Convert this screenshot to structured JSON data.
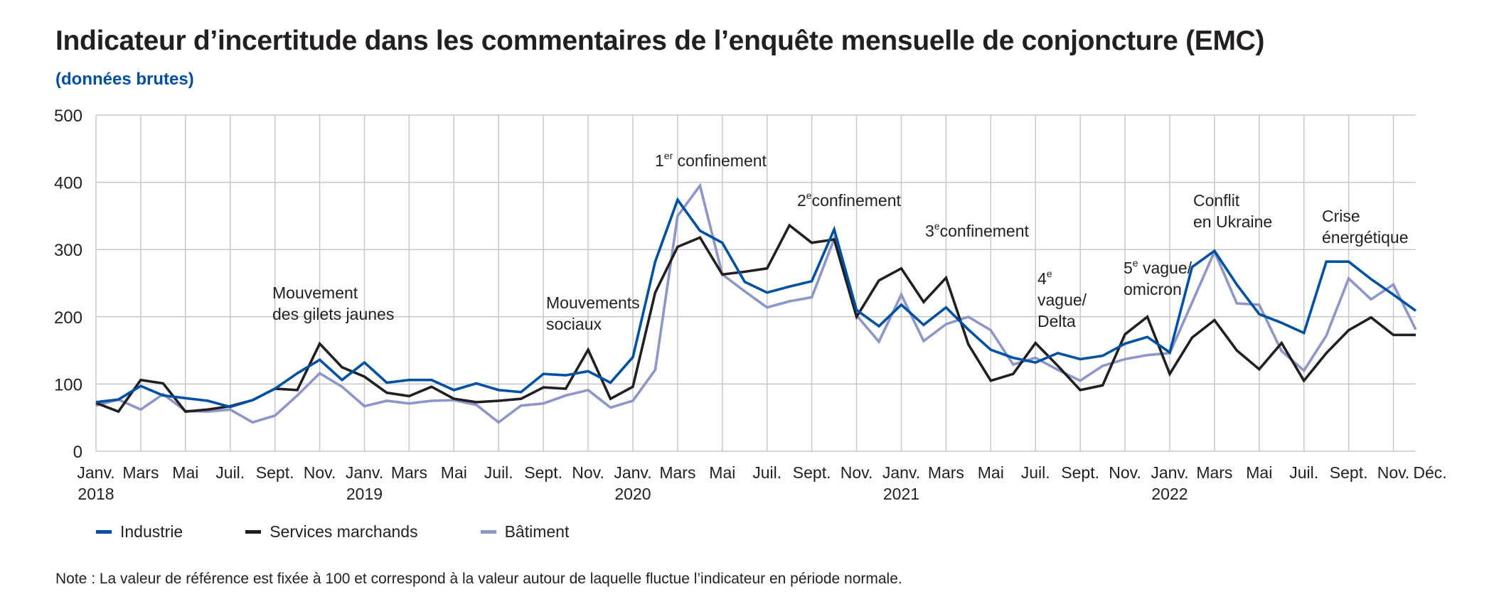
{
  "title": "Indicateur d’incertitude dans les commentaires de l’enquête mensuelle de conjoncture (EMC)",
  "subtitle": "(données brutes)",
  "note": "Note : La valeur de référence est fixée à 100 et correspond à la valeur autour de laquelle fluctue l’indicateur en période normale.",
  "chart_data": {
    "type": "line",
    "title": "Indicateur d’incertitude dans les commentaires de l’enquête mensuelle de conjoncture (EMC)",
    "subtitle": "(données brutes)",
    "xlabel": "",
    "ylabel": "",
    "ylim": [
      0,
      500
    ],
    "y_ticks": [
      0,
      100,
      200,
      300,
      400,
      500
    ],
    "grid": true,
    "legend_position": "bottom",
    "x": [
      "2018-01",
      "2018-02",
      "2018-03",
      "2018-04",
      "2018-05",
      "2018-06",
      "2018-07",
      "2018-08",
      "2018-09",
      "2018-10",
      "2018-11",
      "2018-12",
      "2019-01",
      "2019-02",
      "2019-03",
      "2019-04",
      "2019-05",
      "2019-06",
      "2019-07",
      "2019-08",
      "2019-09",
      "2019-10",
      "2019-11",
      "2019-12",
      "2020-01",
      "2020-02",
      "2020-03",
      "2020-04",
      "2020-05",
      "2020-06",
      "2020-07",
      "2020-08",
      "2020-09",
      "2020-10",
      "2020-11",
      "2020-12",
      "2021-01",
      "2021-02",
      "2021-03",
      "2021-04",
      "2021-05",
      "2021-06",
      "2021-07",
      "2021-08",
      "2021-09",
      "2021-10",
      "2021-11",
      "2021-12",
      "2022-01",
      "2022-02",
      "2022-03",
      "2022-04",
      "2022-05",
      "2022-06",
      "2022-07",
      "2022-08",
      "2022-09",
      "2022-10",
      "2022-11",
      "2022-12"
    ],
    "x_tick_labels": [
      {
        "x": "2018-01",
        "label": "Janv.",
        "year": "2018"
      },
      {
        "x": "2018-03",
        "label": "Mars"
      },
      {
        "x": "2018-05",
        "label": "Mai"
      },
      {
        "x": "2018-07",
        "label": "Juil."
      },
      {
        "x": "2018-09",
        "label": "Sept."
      },
      {
        "x": "2018-11",
        "label": "Nov."
      },
      {
        "x": "2019-01",
        "label": "Janv.",
        "year": "2019"
      },
      {
        "x": "2019-03",
        "label": "Mars"
      },
      {
        "x": "2019-05",
        "label": "Mai"
      },
      {
        "x": "2019-07",
        "label": "Juil."
      },
      {
        "x": "2019-09",
        "label": "Sept."
      },
      {
        "x": "2019-11",
        "label": "Nov."
      },
      {
        "x": "2020-01",
        "label": "Janv.",
        "year": "2020"
      },
      {
        "x": "2020-03",
        "label": "Mars"
      },
      {
        "x": "2020-05",
        "label": "Mai"
      },
      {
        "x": "2020-07",
        "label": "Juil."
      },
      {
        "x": "2020-09",
        "label": "Sept."
      },
      {
        "x": "2020-11",
        "label": "Nov."
      },
      {
        "x": "2021-01",
        "label": "Janv.",
        "year": "2021"
      },
      {
        "x": "2021-03",
        "label": "Mars"
      },
      {
        "x": "2021-05",
        "label": "Mai"
      },
      {
        "x": "2021-07",
        "label": "Juil."
      },
      {
        "x": "2021-09",
        "label": "Sept."
      },
      {
        "x": "2021-11",
        "label": "Nov."
      },
      {
        "x": "2022-01",
        "label": "Janv.",
        "year": "2022"
      },
      {
        "x": "2022-03",
        "label": "Mars"
      },
      {
        "x": "2022-05",
        "label": "Mai"
      },
      {
        "x": "2022-07",
        "label": "Juil."
      },
      {
        "x": "2022-09",
        "label": "Sept."
      },
      {
        "x": "2022-11",
        "label": "Nov."
      },
      {
        "x": "2022-12",
        "label": "Déc."
      }
    ],
    "series": [
      {
        "name": "Industrie",
        "color": "#0050a4",
        "values": [
          73,
          77,
          97,
          83,
          79,
          75,
          66,
          76,
          93,
          116,
          136,
          106,
          132,
          102,
          106,
          106,
          91,
          101,
          91,
          88,
          115,
          113,
          119,
          102,
          140,
          282,
          374,
          328,
          310,
          252,
          236,
          245,
          253,
          330,
          210,
          186,
          218,
          188,
          214,
          181,
          151,
          139,
          132,
          146,
          137,
          142,
          160,
          170,
          147,
          274,
          298,
          248,
          204,
          191,
          176,
          282,
          282,
          256,
          233,
          209
        ]
      },
      {
        "name": "Services marchands",
        "color": "#231f20",
        "values": [
          72,
          59,
          106,
          101,
          59,
          62,
          67,
          76,
          93,
          91,
          160,
          125,
          111,
          87,
          82,
          96,
          78,
          73,
          75,
          78,
          95,
          93,
          151,
          78,
          96,
          236,
          304,
          318,
          263,
          267,
          272,
          336,
          310,
          315,
          200,
          254,
          272,
          222,
          258,
          159,
          105,
          115,
          161,
          127,
          91,
          98,
          174,
          200,
          115,
          169,
          195,
          150,
          122,
          161,
          105,
          146,
          180,
          199,
          173,
          173
        ]
      },
      {
        "name": "Bâtiment",
        "color": "#8c96c8",
        "values": [
          68,
          77,
          62,
          85,
          60,
          59,
          62,
          43,
          53,
          83,
          116,
          96,
          67,
          75,
          71,
          75,
          76,
          69,
          43,
          68,
          71,
          83,
          91,
          65,
          75,
          121,
          350,
          395,
          263,
          238,
          214,
          223,
          229,
          316,
          202,
          163,
          233,
          164,
          189,
          200,
          180,
          129,
          139,
          121,
          105,
          127,
          137,
          143,
          146,
          221,
          297,
          220,
          218,
          149,
          120,
          172,
          257,
          226,
          248,
          181
        ]
      }
    ],
    "annotations": [
      {
        "x": "2018-09",
        "lines": [
          "Mouvement",
          "des gilets jaunes"
        ]
      },
      {
        "x": "2019-09",
        "lines": [
          "Mouvements",
          "sociaux"
        ]
      },
      {
        "x": "2020-02",
        "sup_prefix": "1",
        "sup": "er",
        "lines": [
          " confinement"
        ]
      },
      {
        "x": "2020-08",
        "sup_prefix": "2",
        "sup": "e",
        "lines": [
          "confinement"
        ]
      },
      {
        "x": "2021-02",
        "sup_prefix": "3",
        "sup": "e",
        "lines": [
          "confinement"
        ]
      },
      {
        "x": "2021-07",
        "sup_prefix": "4",
        "sup": "e",
        "lines": [
          "",
          "vague/",
          "Delta"
        ]
      },
      {
        "x": "2021-10",
        "sup_prefix": "5",
        "sup": "e",
        "lines": [
          " vague/",
          "omicron"
        ]
      },
      {
        "x": "2022-02",
        "lines": [
          "Conflit",
          "en Ukraine"
        ]
      },
      {
        "x": "2022-08",
        "lines": [
          "Crise",
          "énergétique"
        ]
      }
    ]
  }
}
